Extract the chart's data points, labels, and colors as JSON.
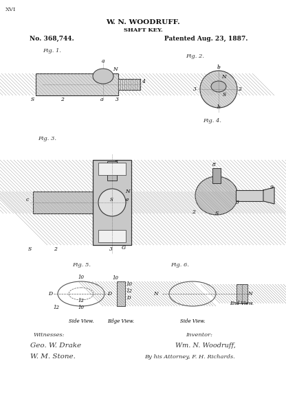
{
  "bg_color": "#ffffff",
  "title_line1": "W. N. WOODRUFF.",
  "title_line2": "SHAFT KEY.",
  "patent_no": "No. 368,744.",
  "patent_date": "Patented Aug. 23, 1887.",
  "page_num": "XVI",
  "fig_labels": [
    "Fig. 1.",
    "Fig. 2.",
    "Fig. 3.",
    "Fig. 4.",
    "Fig. 5.",
    "Fig. 6."
  ],
  "witnesses_label": "Witnesses:",
  "witness1": "Geo. W. Drake",
  "witness2": "W. M. Stone.",
  "inventor_label": "Inventor:",
  "inventor_sig": "Wm. N. Woodruff,",
  "attorney_line": "By his Attorney, F. H. Richards."
}
